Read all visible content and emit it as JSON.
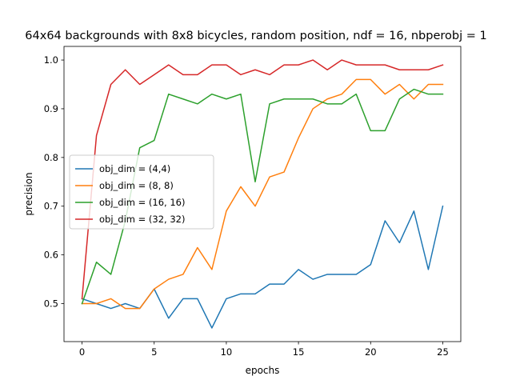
{
  "chart_data": {
    "type": "line",
    "title": "64x64 backgrounds with 8x8 bicycles, random position, ndf = 16, nbperobj = 1",
    "xlabel": "epochs",
    "ylabel": "precision",
    "xlim": [
      -1.25,
      26.25
    ],
    "ylim": [
      0.422,
      1.028
    ],
    "xticks": [
      0,
      5,
      10,
      15,
      20,
      25
    ],
    "yticks": [
      0.5,
      0.6,
      0.7,
      0.8,
      0.9,
      1.0
    ],
    "xtick_labels": [
      "0",
      "5",
      "10",
      "15",
      "20",
      "25"
    ],
    "ytick_labels": [
      "0.5",
      "0.6",
      "0.7",
      "0.8",
      "0.9",
      "1.0"
    ],
    "grid": false,
    "legend_position": "center-left",
    "x": [
      0,
      1,
      2,
      3,
      4,
      5,
      6,
      7,
      8,
      9,
      10,
      11,
      12,
      13,
      14,
      15,
      16,
      17,
      18,
      19,
      20,
      21,
      22,
      23,
      24,
      25
    ],
    "series": [
      {
        "name": "obj_dim = (4,4)",
        "color": "#1f77b4",
        "values": [
          0.51,
          0.5,
          0.49,
          0.5,
          0.49,
          0.53,
          0.47,
          0.51,
          0.51,
          0.45,
          0.51,
          0.52,
          0.52,
          0.54,
          0.54,
          0.57,
          0.55,
          0.56,
          0.56,
          0.56,
          0.58,
          0.67,
          0.625,
          0.69,
          0.57,
          0.7
        ]
      },
      {
        "name": "obj_dim = (8, 8)",
        "color": "#ff7f0e",
        "values": [
          0.5,
          0.5,
          0.51,
          0.49,
          0.49,
          0.53,
          0.55,
          0.56,
          0.615,
          0.57,
          0.69,
          0.74,
          0.7,
          0.76,
          0.77,
          0.84,
          0.9,
          0.92,
          0.93,
          0.96,
          0.96,
          0.93,
          0.95,
          0.92,
          0.95,
          0.95
        ]
      },
      {
        "name": "obj_dim = (16, 16)",
        "color": "#2ca02c",
        "values": [
          0.5,
          0.585,
          0.56,
          0.67,
          0.82,
          0.835,
          0.93,
          0.92,
          0.91,
          0.93,
          0.92,
          0.93,
          0.75,
          0.91,
          0.92,
          0.92,
          0.92,
          0.91,
          0.91,
          0.93,
          0.855,
          0.855,
          0.92,
          0.94,
          0.93,
          0.93
        ]
      },
      {
        "name": "obj_dim = (32, 32)",
        "color": "#d62728",
        "values": [
          0.51,
          0.845,
          0.95,
          0.98,
          0.95,
          0.97,
          0.99,
          0.97,
          0.97,
          0.99,
          0.99,
          0.97,
          0.98,
          0.97,
          0.99,
          0.99,
          1.0,
          0.98,
          1.0,
          0.99,
          0.99,
          0.99,
          0.98,
          0.98,
          0.98,
          0.99
        ]
      }
    ]
  }
}
